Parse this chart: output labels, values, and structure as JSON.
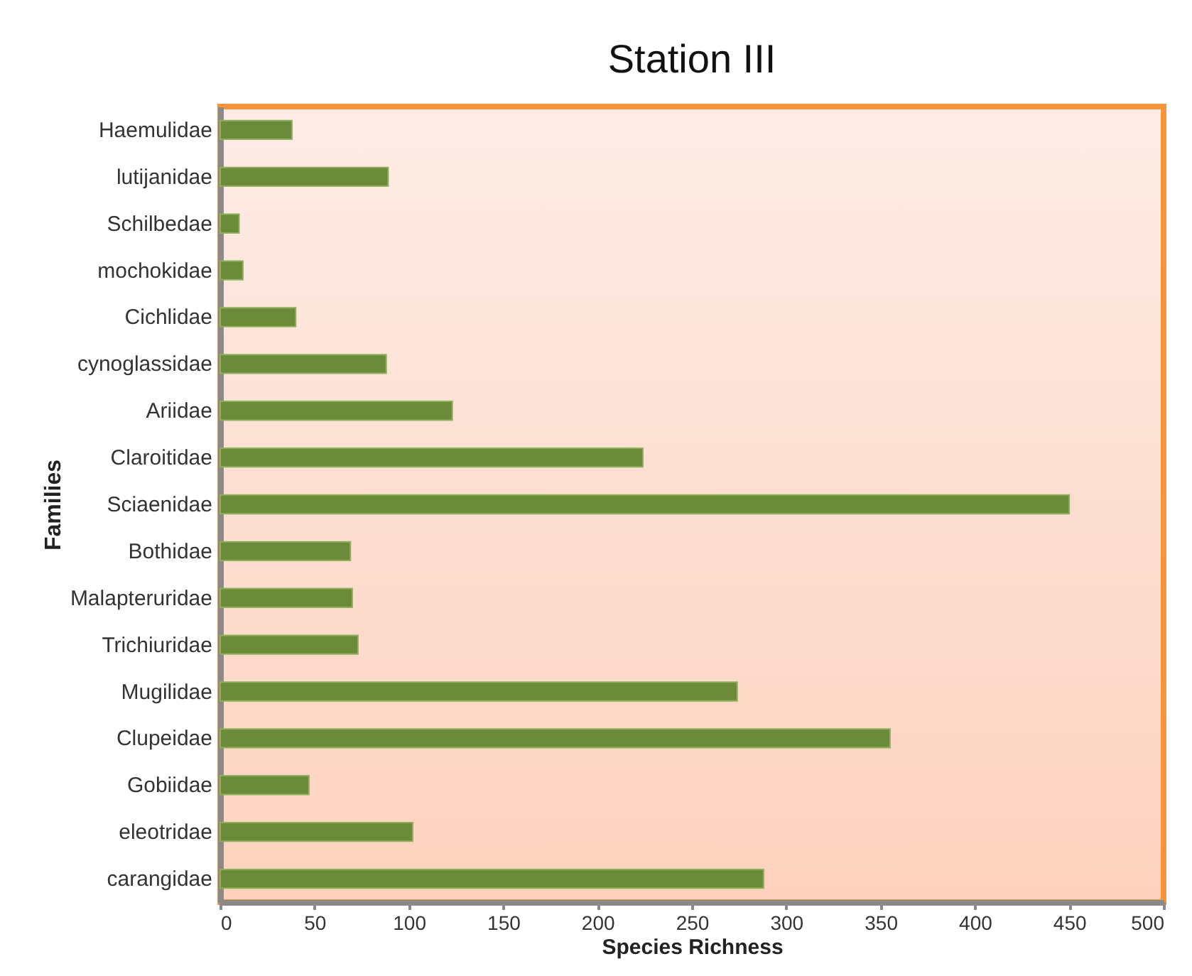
{
  "chart_data": {
    "type": "bar",
    "orientation": "horizontal",
    "title": "Station III",
    "xlabel": "Species Richness",
    "ylabel": "Families",
    "categories": [
      "Haemulidae",
      "lutijanidae",
      "Schilbedae",
      "mochokidae",
      "Cichlidae",
      "cynoglassidae",
      "Ariidae",
      "Claroitidae",
      "Sciaenidae",
      "Bothidae",
      "Malapteruridae",
      "Trichiuridae",
      "Mugilidae",
      "Clupeidae",
      "Gobiidae",
      "eleotridae",
      "carangidae"
    ],
    "values": [
      38,
      89,
      10,
      12,
      40,
      88,
      123,
      224,
      450,
      69,
      70,
      73,
      274,
      355,
      47,
      102,
      288
    ],
    "color": "#6b8b3a",
    "xlim": [
      0,
      500
    ],
    "xticks": [
      0,
      50,
      100,
      150,
      200,
      250,
      300,
      350,
      400,
      450,
      500
    ],
    "grid": false
  }
}
